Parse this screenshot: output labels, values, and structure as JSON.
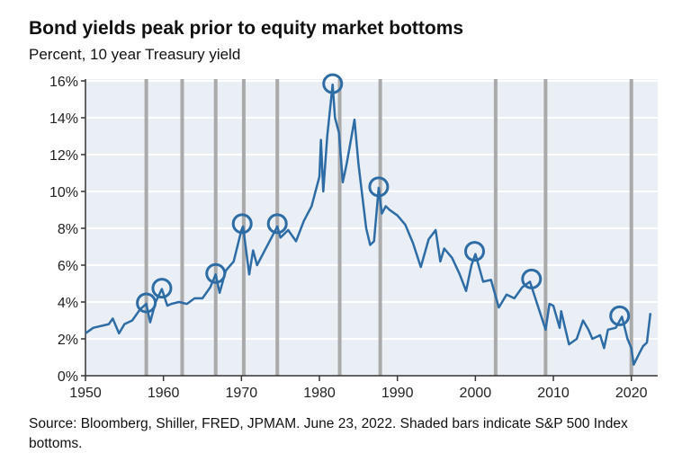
{
  "chart_data": {
    "type": "line",
    "title": "Bond yields peak prior to equity market bottoms",
    "subtitle": "Percent, 10 year Treasury yield",
    "source": "Source: Bloomberg, Shiller, FRED, JPMAM. June 23, 2022. Shaded bars indicate S&P 500 Index bottoms.",
    "xlim": [
      1950,
      2023
    ],
    "ylim": [
      0,
      16
    ],
    "x_ticks": [
      1950,
      1960,
      1970,
      1980,
      1990,
      2000,
      2010,
      2020
    ],
    "y_ticks": [
      0,
      2,
      4,
      6,
      8,
      10,
      12,
      14,
      16
    ],
    "y_tick_labels": [
      "0%",
      "2%",
      "4%",
      "6%",
      "8%",
      "10%",
      "12%",
      "14%",
      "16%"
    ],
    "grid": "horizontal",
    "colors": {
      "line": "#2d6ca5",
      "background": "#e9eff4",
      "bars": "#aaaaaa"
    },
    "series": [
      {
        "points": [
          [
            1950,
            2.3
          ],
          [
            1951,
            2.6
          ],
          [
            1953,
            2.8
          ],
          [
            1953.5,
            3.1
          ],
          [
            1954.3,
            2.3
          ],
          [
            1955,
            2.8
          ],
          [
            1956,
            3.0
          ],
          [
            1957,
            3.6
          ],
          [
            1957.8,
            3.9
          ],
          [
            1958.3,
            2.9
          ],
          [
            1959,
            4.0
          ],
          [
            1959.8,
            4.7
          ],
          [
            1960.5,
            3.8
          ],
          [
            1961,
            3.9
          ],
          [
            1962,
            4.0
          ],
          [
            1963,
            3.9
          ],
          [
            1964,
            4.2
          ],
          [
            1965,
            4.2
          ],
          [
            1966,
            4.8
          ],
          [
            1966.7,
            5.5
          ],
          [
            1967.2,
            4.5
          ],
          [
            1968,
            5.7
          ],
          [
            1969,
            6.2
          ],
          [
            1970,
            7.9
          ],
          [
            1970.2,
            8.1
          ],
          [
            1971,
            5.5
          ],
          [
            1971.5,
            6.8
          ],
          [
            1972,
            6.0
          ],
          [
            1973,
            6.8
          ],
          [
            1974.6,
            8.1
          ],
          [
            1975,
            7.5
          ],
          [
            1976,
            7.9
          ],
          [
            1977,
            7.3
          ],
          [
            1978,
            8.4
          ],
          [
            1979,
            9.2
          ],
          [
            1980,
            10.8
          ],
          [
            1980.2,
            12.8
          ],
          [
            1980.5,
            10.0
          ],
          [
            1981,
            13.0
          ],
          [
            1981.7,
            15.8
          ],
          [
            1982,
            14.0
          ],
          [
            1982.5,
            13.2
          ],
          [
            1983,
            10.5
          ],
          [
            1983.5,
            11.5
          ],
          [
            1984.5,
            13.9
          ],
          [
            1985,
            11.5
          ],
          [
            1986,
            8.0
          ],
          [
            1986.5,
            7.1
          ],
          [
            1987,
            7.3
          ],
          [
            1987.6,
            10.2
          ],
          [
            1988,
            8.8
          ],
          [
            1988.5,
            9.2
          ],
          [
            1989,
            9.0
          ],
          [
            1990,
            8.7
          ],
          [
            1991,
            8.2
          ],
          [
            1992,
            7.2
          ],
          [
            1993,
            5.9
          ],
          [
            1994,
            7.4
          ],
          [
            1994.9,
            7.9
          ],
          [
            1995.5,
            6.2
          ],
          [
            1996,
            6.9
          ],
          [
            1997,
            6.4
          ],
          [
            1998,
            5.5
          ],
          [
            1998.8,
            4.6
          ],
          [
            1999.5,
            6.0
          ],
          [
            2000,
            6.6
          ],
          [
            2001,
            5.1
          ],
          [
            2002,
            5.2
          ],
          [
            2003,
            3.7
          ],
          [
            2004,
            4.4
          ],
          [
            2005,
            4.2
          ],
          [
            2006,
            4.8
          ],
          [
            2007,
            5.1
          ],
          [
            2008,
            3.8
          ],
          [
            2009,
            2.5
          ],
          [
            2009.5,
            3.9
          ],
          [
            2010,
            3.8
          ],
          [
            2010.8,
            2.6
          ],
          [
            2011,
            3.5
          ],
          [
            2012,
            1.7
          ],
          [
            2013,
            2.0
          ],
          [
            2013.8,
            3.0
          ],
          [
            2014.5,
            2.5
          ],
          [
            2015,
            2.0
          ],
          [
            2016,
            2.2
          ],
          [
            2016.5,
            1.5
          ],
          [
            2017,
            2.5
          ],
          [
            2018,
            2.6
          ],
          [
            2018.8,
            3.2
          ],
          [
            2019.5,
            2.0
          ],
          [
            2020,
            1.5
          ],
          [
            2020.3,
            0.6
          ],
          [
            2021,
            1.2
          ],
          [
            2021.5,
            1.6
          ],
          [
            2022,
            1.8
          ],
          [
            2022.45,
            3.4
          ]
        ]
      }
    ],
    "equity_bottoms": [
      1957.8,
      1962.4,
      1966.7,
      1970.3,
      1974.6,
      1982.6,
      1987.8,
      2002.6,
      2009.0,
      2020.0
    ],
    "yield_peaks": [
      [
        1957.8,
        3.9
      ],
      [
        1959.8,
        4.7
      ],
      [
        1966.7,
        5.5
      ],
      [
        1970.1,
        8.2
      ],
      [
        1974.6,
        8.2
      ],
      [
        1981.7,
        15.8
      ],
      [
        1987.6,
        10.2
      ],
      [
        1999.9,
        6.7
      ],
      [
        2007.2,
        5.2
      ],
      [
        2018.5,
        3.2
      ]
    ]
  }
}
